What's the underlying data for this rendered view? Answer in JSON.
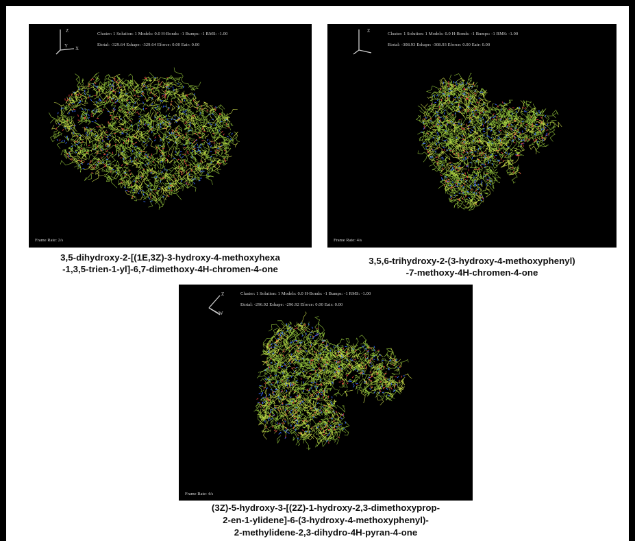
{
  "panels": [
    {
      "header_line1": "Cluster: 1 Solution: 1 Models: 0.0 H-Bonds: -1 Bumps: -1 RMS: -1.00",
      "header_line2": "Etotal: -329.64 Eshape: -329.64 Eforce: 0.00 Eair: 0.00",
      "frame_rate": "Frame Rate: 2/s",
      "axes": {
        "z": "Z",
        "y": "Y",
        "x": "X"
      },
      "caption_line1": "3,5-dihydroxy-2-[(1E,3Z)-3-hydroxy-4-methoxyhexa",
      "caption_line2": "-1,3,5-trien-1-yl]-6,7-dimethoxy-4H-chromen-4-one"
    },
    {
      "header_line1": "Cluster: 1 Solution: 1 Models: 0.0 H-Bonds: -1 Bumps: -1 RMS: -1.00",
      "header_line2": "Etotal: -308.93 Eshape: -308.93 Eforce: 0.00 Eair: 0.00",
      "frame_rate": "Frame Rate: 4/s",
      "axes": {
        "z": "Z",
        "y": "",
        "x": ""
      },
      "caption_line1": "3,5,6-trihydroxy-2-(3-hydroxy-4-methoxyphenyl)",
      "caption_line2": "-7-methoxy-4H-chromen-4-one"
    },
    {
      "header_line1": "Cluster: 1 Solution: 1 Models: 0.0 H-Bonds: -1 Bumps: -1 RMS: -1.00",
      "header_line2": "Etotal: -296.92 Eshape: -296.92 Eforce: 0.00 Eair: 0.00",
      "frame_rate": "Frame Rate: 4/s",
      "axes": {
        "z": "Z",
        "y": "",
        "x": "W"
      },
      "caption_line1": "(3Z)-5-hydroxy-3-[(2Z)-1-hydroxy-2,3-dimethoxyprop-",
      "caption_line2": "2-en-1-ylidene]-6-(3-hydroxy-4-methoxyphenyl)-",
      "caption_line3": "2-methylidene-2,3-dihydro-4H-pyran-4-one"
    }
  ],
  "colors": {
    "background": "#000000",
    "chain_primary": "#8fbf3a",
    "chain_secondary": "#c9d94a",
    "atom_n": "#3a6bff",
    "atom_o": "#e04040",
    "border": "#000000"
  },
  "icons": [
    "axes-orientation-icon"
  ]
}
